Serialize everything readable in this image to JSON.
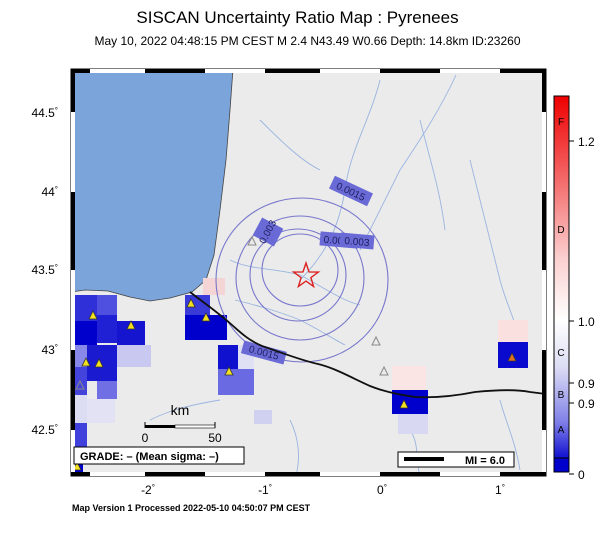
{
  "header": {
    "title": "SISCAN Uncertainty Ratio Map : Pyrenees",
    "subtitle": "May 10, 2022 04:48:15 PM CEST   M 2.4   N43.49 W0.66   Depth: 14.8km   ID:23260"
  },
  "footer": {
    "processed": "Map Version 1 Processed 2022-05-10 04:50:07 PM CEST"
  },
  "axes": {
    "lat_ticks": [
      "44.5",
      "44",
      "43.5",
      "43",
      "42.5"
    ],
    "lon_ticks": [
      "-2",
      "-1",
      "0",
      "1"
    ],
    "deg_symbol": "°"
  },
  "legend": {
    "grade": "GRADE: – (Mean sigma: –)",
    "mmi": "MI = 6.0",
    "scale_unit": "km",
    "scale_start": "0",
    "scale_end": "50"
  },
  "contours": [
    "0.0015",
    "0.003",
    "0.0015",
    "0.003",
    "0.0015"
  ],
  "colorbar": {
    "grades": [
      "F",
      "D",
      "C",
      "B",
      "A"
    ],
    "values": [
      "1.2",
      "1.0",
      "0.9",
      "0.9",
      "0"
    ]
  },
  "epicenter": {
    "lat": 43.49,
    "lon": -0.66
  },
  "colors": {
    "sea": "#7ba4da",
    "land": "#ebebeb",
    "contour": "#7777cc",
    "epicenter": "#dd2222",
    "high": "#e00000",
    "low": "#0000cc"
  }
}
